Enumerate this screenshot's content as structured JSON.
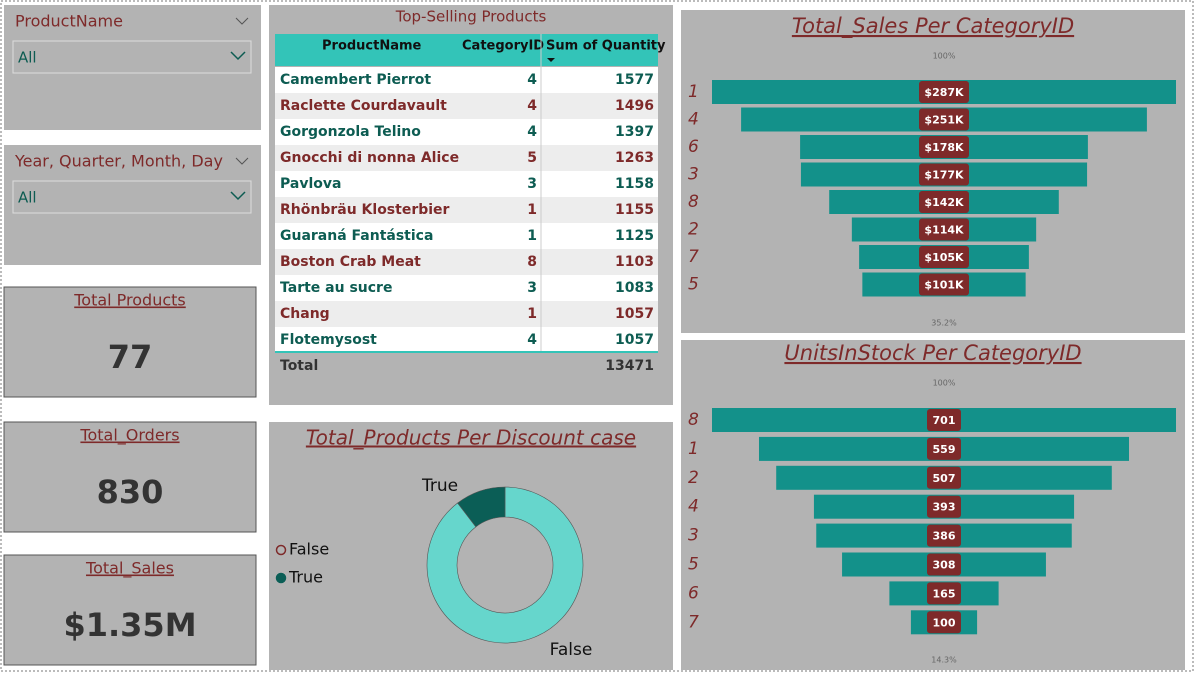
{
  "slicers": [
    {
      "title": "ProductName",
      "value": "All"
    },
    {
      "title": "Year, Quarter, Month, Day",
      "value": "All"
    }
  ],
  "cards": [
    {
      "title": "Total Products",
      "value": 77
    },
    {
      "title": "Total_Orders",
      "value": 830
    },
    {
      "title": "Total_Sales",
      "value": "$1.35M"
    }
  ],
  "table": {
    "title": "Top-Selling Products",
    "columns": [
      "ProductName",
      "CategoryID",
      "Sum of Quantity"
    ],
    "rows": [
      [
        "Camembert Pierrot",
        4,
        1577
      ],
      [
        "Raclette Courdavault",
        4,
        1496
      ],
      [
        "Gorgonzola Telino",
        4,
        1397
      ],
      [
        "Gnocchi di nonna Alice",
        5,
        1263
      ],
      [
        "Pavlova",
        3,
        1158
      ],
      [
        "Rhönbräu Klosterbier",
        1,
        1155
      ],
      [
        "Guaraná Fantástica",
        1,
        1125
      ],
      [
        "Boston Crab Meat",
        8,
        1103
      ],
      [
        "Tarte au sucre",
        3,
        1083
      ],
      [
        "Chang",
        1,
        1057
      ],
      [
        "Flotemysost",
        4,
        1057
      ]
    ],
    "total_label": "Total",
    "total": 13471
  },
  "chart_data": [
    {
      "type": "funnel",
      "title": "Total_Sales Per CategoryID",
      "categories": [
        "1",
        "4",
        "6",
        "3",
        "8",
        "2",
        "7",
        "5"
      ],
      "values": [
        287000,
        251000,
        178000,
        177000,
        142000,
        114000,
        105000,
        101000
      ],
      "value_labels": [
        "$287K",
        "$251K",
        "$178K",
        "$177K",
        "$142K",
        "$114K",
        "$105K",
        "$101K"
      ],
      "top_label": "100%",
      "bottom_label": "35.2%",
      "color": "#13918a",
      "label_color": "#7e2a2a"
    },
    {
      "type": "funnel",
      "title": "UnitsInStock Per CategoryID",
      "categories": [
        "8",
        "1",
        "2",
        "4",
        "3",
        "5",
        "6",
        "7"
      ],
      "values": [
        701,
        559,
        507,
        393,
        386,
        308,
        165,
        100
      ],
      "top_label": "100%",
      "bottom_label": "14.3%",
      "color": "#13918a",
      "label_color": "#7e2a2a"
    },
    {
      "type": "donut",
      "title": "Total_Products Per Discount case",
      "categories": [
        "False",
        "True"
      ],
      "values": [
        69,
        8
      ],
      "colors": [
        "#66d6cc",
        "#0b5e56"
      ]
    }
  ]
}
